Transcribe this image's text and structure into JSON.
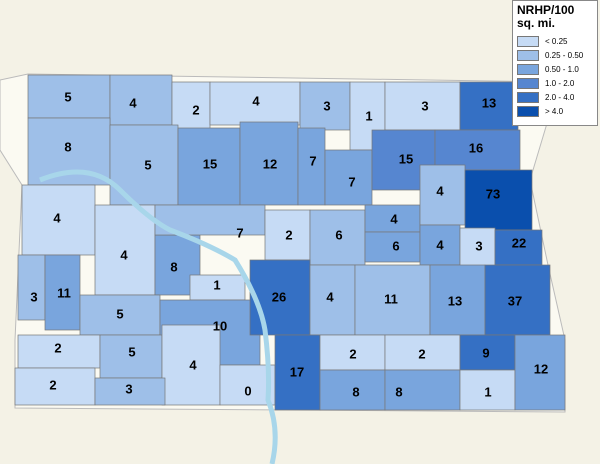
{
  "legend": {
    "title": "NRHP/100 sq. mi.",
    "items": [
      {
        "label": "< 0.25",
        "color": "#c6dbf5"
      },
      {
        "label": "0.25 - 0.50",
        "color": "#9ebfe8"
      },
      {
        "label": "0.50 - 1.0",
        "color": "#79a5dd"
      },
      {
        "label": "1.0 - 2.0",
        "color": "#5686d0"
      },
      {
        "label": "2.0 - 4.0",
        "color": "#3570c4"
      },
      {
        "label": "> 4.0",
        "color": "#0a4fad"
      }
    ]
  },
  "counties": [
    {
      "value": 5,
      "color": "#9ebfe8"
    },
    {
      "value": 4,
      "color": "#9ebfe8"
    },
    {
      "value": 2,
      "color": "#c6dbf5"
    },
    {
      "value": 4,
      "color": "#c6dbf5"
    },
    {
      "value": 3,
      "color": "#9ebfe8"
    },
    {
      "value": 1,
      "color": "#c6dbf5"
    },
    {
      "value": 3,
      "color": "#c6dbf5"
    },
    {
      "value": 13,
      "color": "#3570c4"
    },
    {
      "value": 8,
      "color": "#9ebfe8"
    },
    {
      "value": 5,
      "color": "#9ebfe8"
    },
    {
      "value": 15,
      "color": "#79a5dd"
    },
    {
      "value": 12,
      "color": "#79a5dd"
    },
    {
      "value": 7,
      "color": "#79a5dd"
    },
    {
      "value": 7,
      "color": "#79a5dd"
    },
    {
      "value": 15,
      "color": "#5686d0"
    },
    {
      "value": 16,
      "color": "#5686d0"
    },
    {
      "value": 4,
      "color": "#c6dbf5"
    },
    {
      "value": 4,
      "color": "#c6dbf5"
    },
    {
      "value": 8,
      "color": "#79a5dd"
    },
    {
      "value": 7,
      "color": "#9ebfe8"
    },
    {
      "value": 2,
      "color": "#c6dbf5"
    },
    {
      "value": 6,
      "color": "#9ebfe8"
    },
    {
      "value": 4,
      "color": "#79a5dd"
    },
    {
      "value": 6,
      "color": "#79a5dd"
    },
    {
      "value": 4,
      "color": "#9ebfe8"
    },
    {
      "value": 73,
      "color": "#0a4fad"
    },
    {
      "value": 4,
      "color": "#79a5dd"
    },
    {
      "value": 3,
      "color": "#c6dbf5"
    },
    {
      "value": 22,
      "color": "#3570c4"
    },
    {
      "value": 3,
      "color": "#9ebfe8"
    },
    {
      "value": 11,
      "color": "#79a5dd"
    },
    {
      "value": 5,
      "color": "#9ebfe8"
    },
    {
      "value": 1,
      "color": "#c6dbf5"
    },
    {
      "value": 10,
      "color": "#79a5dd"
    },
    {
      "value": 26,
      "color": "#3570c4"
    },
    {
      "value": 4,
      "color": "#9ebfe8"
    },
    {
      "value": 11,
      "color": "#9ebfe8"
    },
    {
      "value": 13,
      "color": "#79a5dd"
    },
    {
      "value": 37,
      "color": "#3570c4"
    },
    {
      "value": 2,
      "color": "#c6dbf5"
    },
    {
      "value": 5,
      "color": "#9ebfe8"
    },
    {
      "value": 4,
      "color": "#c6dbf5"
    },
    {
      "value": 0,
      "color": "#c6dbf5"
    },
    {
      "value": 17,
      "color": "#3570c4"
    },
    {
      "value": 2,
      "color": "#c6dbf5"
    },
    {
      "value": 8,
      "color": "#79a5dd"
    },
    {
      "value": 2,
      "color": "#c6dbf5"
    },
    {
      "value": 8,
      "color": "#79a5dd"
    },
    {
      "value": 9,
      "color": "#3570c4"
    },
    {
      "value": 1,
      "color": "#c6dbf5"
    },
    {
      "value": 12,
      "color": "#79a5dd"
    },
    {
      "value": 2,
      "color": "#c6dbf5"
    },
    {
      "value": 3,
      "color": "#9ebfe8"
    }
  ]
}
